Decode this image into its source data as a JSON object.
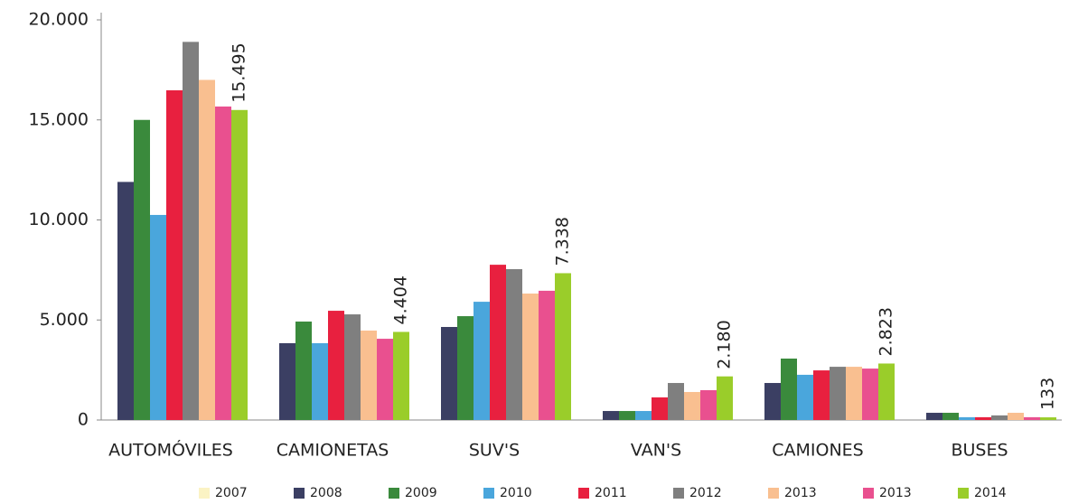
{
  "chart_data": {
    "type": "bar",
    "categories": [
      "AUTOMÓVILES",
      "CAMIONETAS",
      "SUV'S",
      "VAN'S",
      "CAMIONES",
      "BUSES"
    ],
    "series": [
      {
        "name": "2007",
        "color": "#fbf3c4",
        "values": [
          null,
          null,
          null,
          null,
          null,
          null
        ]
      },
      {
        "name": "2008",
        "color": "#3b3f63",
        "values": [
          11900,
          3840,
          4650,
          450,
          1850,
          360
        ]
      },
      {
        "name": "2009",
        "color": "#3a8a3c",
        "values": [
          15000,
          4920,
          5190,
          450,
          3070,
          360
        ]
      },
      {
        "name": "2010",
        "color": "#4aa6dc",
        "values": [
          10250,
          3840,
          5910,
          450,
          2260,
          140
        ]
      },
      {
        "name": "2011",
        "color": "#e8203f",
        "values": [
          16480,
          5460,
          7760,
          1130,
          2480,
          140
        ]
      },
      {
        "name": "2012",
        "color": "#7f7f7f",
        "values": [
          18900,
          5280,
          7540,
          1850,
          2660,
          230
        ]
      },
      {
        "name": "2013",
        "color": "#f9bf90",
        "values": [
          17000,
          4470,
          6320,
          1400,
          2660,
          360
        ]
      },
      {
        "name": "2013",
        "color": "#e9508f",
        "values": [
          15670,
          4060,
          6460,
          1490,
          2570,
          140
        ]
      },
      {
        "name": "2014",
        "color": "#9acd2a",
        "values": [
          15495,
          4404,
          7338,
          2180,
          2823,
          133
        ],
        "value_labels": [
          "15.495",
          "4.404",
          "7.338",
          "2.180",
          "2.823",
          "133"
        ]
      }
    ],
    "ylim": [
      0,
      20000
    ],
    "yticks": [
      0,
      {
        "value": 5000,
        "label": "5.000"
      },
      {
        "value": 10000,
        "label": "10.000"
      },
      {
        "value": 15000,
        "label": "15.000"
      },
      {
        "value": 20000,
        "label": "20.000"
      }
    ]
  }
}
